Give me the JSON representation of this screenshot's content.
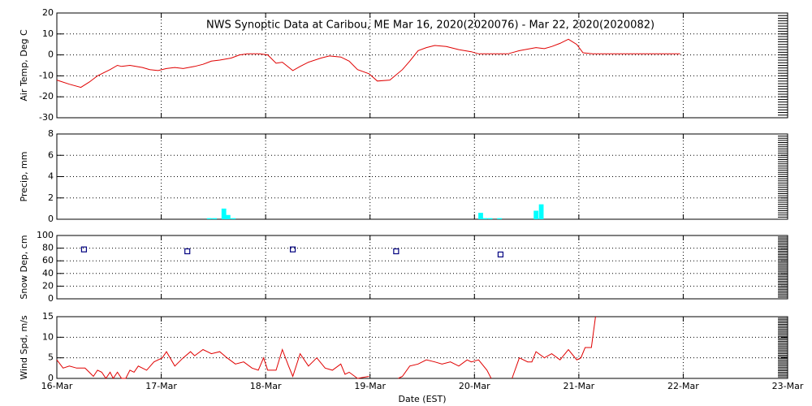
{
  "chart_data": [
    {
      "type": "line",
      "title": "NWS Synoptic Data at Caribou, ME   Mar 16, 2020(2020076) - Mar 22, 2020(2020082)",
      "y_label": "Air Temp, Deg C",
      "color": "#e00000",
      "x": [
        0,
        0.12,
        0.23,
        0.31,
        0.39,
        0.51,
        0.58,
        0.62,
        0.7,
        0.82,
        0.89,
        0.97,
        1.05,
        1.13,
        1.21,
        1.32,
        1.4,
        1.48,
        1.56,
        1.67,
        1.75,
        1.83,
        1.94,
        2.02,
        2.1,
        2.16,
        2.26,
        2.33,
        2.41,
        2.53,
        2.61,
        2.72,
        2.8,
        2.88,
        2.99,
        3.07,
        3.19,
        3.31,
        3.38,
        3.46,
        3.54,
        3.62,
        3.73,
        3.85,
        3.97,
        4.04,
        4.12,
        4.32,
        4.43,
        4.59,
        4.67,
        4.74,
        4.82,
        4.9,
        4.98,
        5.04,
        5.13,
        5.97
      ],
      "values": [
        -12,
        -14,
        -15.5,
        -13,
        -10,
        -7,
        -5,
        -5.5,
        -5,
        -6,
        -7,
        -7.5,
        -6.5,
        -6,
        -6.5,
        -5.5,
        -4.5,
        -3,
        -2.5,
        -1.5,
        0,
        0.5,
        0.5,
        0,
        -4,
        -3.5,
        -7.5,
        -5.5,
        -3.5,
        -1.5,
        -0.5,
        -1,
        -3,
        -7,
        -9,
        -12.5,
        -12,
        -7,
        -3,
        2,
        3.5,
        4.5,
        4,
        2.5,
        1.5,
        0.5,
        0.5,
        0.5,
        2,
        3.5,
        3,
        4,
        5.5,
        7.5,
        5,
        1,
        0.5,
        0.5
      ],
      "xlim": [
        0,
        7
      ],
      "xticks": [
        0,
        1,
        2,
        3,
        4,
        5,
        6,
        7
      ],
      "ylim": [
        -30,
        20
      ],
      "yticks": [
        -30,
        -20,
        -10,
        0,
        10,
        20
      ],
      "grid": true
    },
    {
      "type": "bar",
      "y_label": "Precip, mm",
      "color": "#00ffff",
      "x": [
        1.46,
        1.51,
        1.6,
        1.64,
        1.69,
        4.06,
        4.1,
        4.15,
        4.24,
        4.59,
        4.64
      ],
      "values": [
        0.1,
        0.1,
        1.0,
        0.4,
        0.1,
        0.6,
        0.1,
        0.1,
        0.1,
        0.8,
        1.4
      ],
      "xlim": [
        0,
        7
      ],
      "xticks": [
        0,
        1,
        2,
        3,
        4,
        5,
        6,
        7
      ],
      "ylim": [
        0,
        8
      ],
      "yticks": [
        0,
        2,
        4,
        6,
        8
      ],
      "grid": true
    },
    {
      "type": "scatter",
      "y_label": "Snow Dep, cm",
      "color": "#000080",
      "x": [
        0.26,
        1.25,
        2.26,
        3.25,
        4.25
      ],
      "values": [
        78,
        75,
        78,
        75,
        70
      ],
      "xlim": [
        0,
        7
      ],
      "xticks": [
        0,
        1,
        2,
        3,
        4,
        5,
        6,
        7
      ],
      "ylim": [
        0,
        100
      ],
      "yticks": [
        0,
        20,
        40,
        60,
        80,
        100
      ],
      "grid": true
    },
    {
      "type": "line",
      "y_label": "Wind Spd, m/s",
      "x_label": "Date (EST)",
      "color": "#e00000",
      "x": [
        0,
        0.06,
        0.12,
        0.19,
        0.27,
        0.31,
        0.35,
        0.39,
        0.43,
        0.47,
        0.51,
        0.54,
        0.58,
        0.62,
        0.66,
        0.7,
        0.74,
        0.78,
        0.86,
        0.93,
        1.01,
        1.05,
        1.13,
        1.21,
        1.28,
        1.32,
        1.4,
        1.48,
        1.56,
        1.63,
        1.71,
        1.79,
        1.87,
        1.93,
        1.98,
        2.02,
        2.1,
        2.16,
        2.22,
        2.26,
        2.33,
        2.41,
        2.49,
        2.57,
        2.64,
        2.72,
        2.76,
        2.8,
        2.88,
        2.99,
        3.03,
        3.27,
        3.31,
        3.38,
        3.46,
        3.54,
        3.62,
        3.69,
        3.77,
        3.85,
        3.93,
        3.97,
        4.04,
        4.12,
        4.16,
        4.2,
        4.36,
        4.43,
        4.51,
        4.55,
        4.59,
        4.67,
        4.74,
        4.82,
        4.9,
        4.98,
        5.02,
        5.06,
        5.12,
        5.16
      ],
      "values": [
        4.5,
        2.5,
        3,
        2.5,
        2.5,
        1.5,
        0.5,
        2,
        1.5,
        0,
        1.5,
        0,
        1.5,
        0,
        0,
        2,
        1.5,
        3,
        2,
        4,
        5,
        6.5,
        3,
        5,
        6.5,
        5.5,
        7,
        6,
        6.5,
        5,
        3.5,
        4,
        2.5,
        2,
        5,
        2,
        2,
        7,
        3,
        0.5,
        6,
        3,
        5,
        2.5,
        2,
        3.5,
        1,
        1.5,
        0,
        0.5,
        null,
        0,
        0.5,
        3,
        3.5,
        4.5,
        4,
        3.5,
        4,
        3,
        4.5,
        4,
        4.5,
        2,
        0,
        null,
        0,
        5,
        4,
        4,
        6.5,
        5,
        6,
        4.5,
        7,
        4.5,
        5,
        7.5,
        7.5,
        15
      ],
      "xlim": [
        0,
        7
      ],
      "xticks": [
        {
          "value": 0,
          "label": "16-Mar"
        },
        {
          "value": 1,
          "label": "17-Mar"
        },
        {
          "value": 2,
          "label": "18-Mar"
        },
        {
          "value": 3,
          "label": "19-Mar"
        },
        {
          "value": 4,
          "label": "20-Mar"
        },
        {
          "value": 5,
          "label": "21-Mar"
        },
        {
          "value": 6,
          "label": "22-Mar"
        },
        {
          "value": 7,
          "label": "23-Mar"
        }
      ],
      "ylim": [
        0,
        15
      ],
      "yticks": [
        0,
        5,
        10,
        15
      ],
      "grid": true
    }
  ]
}
